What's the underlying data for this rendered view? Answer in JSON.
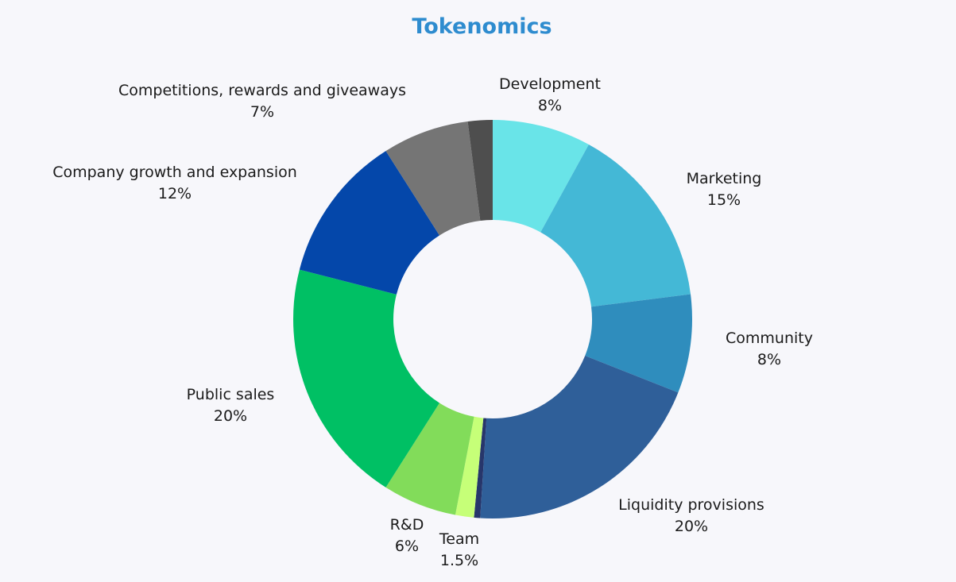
{
  "chart_data": {
    "type": "pie",
    "title": "Tokenomics",
    "donut": true,
    "slices": [
      {
        "label": "Development",
        "value": 8,
        "value_label": "8%",
        "color": "#69e4e8"
      },
      {
        "label": "Marketing",
        "value": 15,
        "value_label": "15%",
        "color": "#44b8d6"
      },
      {
        "label": "Community",
        "value": 8,
        "value_label": "8%",
        "color": "#2f8dbd"
      },
      {
        "label": "Liquidity provisions",
        "value": 20,
        "value_label": "20%",
        "color": "#2f5f99"
      },
      {
        "label": "",
        "value": 0.5,
        "value_label": "",
        "color": "#27366b"
      },
      {
        "label": "Team",
        "value": 1.5,
        "value_label": "1.5%",
        "color": "#c6ff78"
      },
      {
        "label": "R&D",
        "value": 6,
        "value_label": "6%",
        "color": "#82dc5a"
      },
      {
        "label": "Public sales",
        "value": 20,
        "value_label": "20%",
        "color": "#00c064"
      },
      {
        "label": "Company growth and expansion",
        "value": 12,
        "value_label": "12%",
        "color": "#0447aa"
      },
      {
        "label": "Competitions, rewards and giveaways",
        "value": 7,
        "value_label": "7%",
        "color": "#757575"
      },
      {
        "label": "",
        "value": 2,
        "value_label": "",
        "color": "#4e4e4e"
      }
    ]
  }
}
